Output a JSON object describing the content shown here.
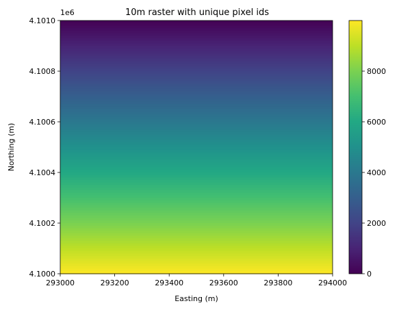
{
  "chart_data": {
    "type": "heatmap",
    "title": "10m raster with unique pixel ids",
    "xlabel": "Easting (m)",
    "ylabel": "Northing (m)",
    "xlim": [
      293000,
      294000
    ],
    "ylim": [
      4100000,
      4101000
    ],
    "y_offset_label": "1e6",
    "x_ticks": [
      293000,
      293200,
      293400,
      293600,
      293800,
      294000
    ],
    "x_tick_labels": [
      "293000",
      "293200",
      "293400",
      "293600",
      "293800",
      "294000"
    ],
    "y_ticks": [
      4100000,
      4100200,
      4100400,
      4100600,
      4100800,
      4101000
    ],
    "y_tick_labels": [
      "4.1000",
      "4.1002",
      "4.1004",
      "4.1006",
      "4.1008",
      "4.1010"
    ],
    "pixel_size_m": 10,
    "grid_shape": [
      100,
      100
    ],
    "value_range": [
      0,
      9999
    ],
    "value_order": "row-major from top-left (north-west) corner",
    "colormap": "viridis",
    "colorbar": {
      "range": [
        0,
        9999
      ],
      "ticks": [
        0,
        2000,
        4000,
        6000,
        8000
      ],
      "tick_labels": [
        "0",
        "2000",
        "4000",
        "6000",
        "8000"
      ]
    },
    "grid": false
  }
}
